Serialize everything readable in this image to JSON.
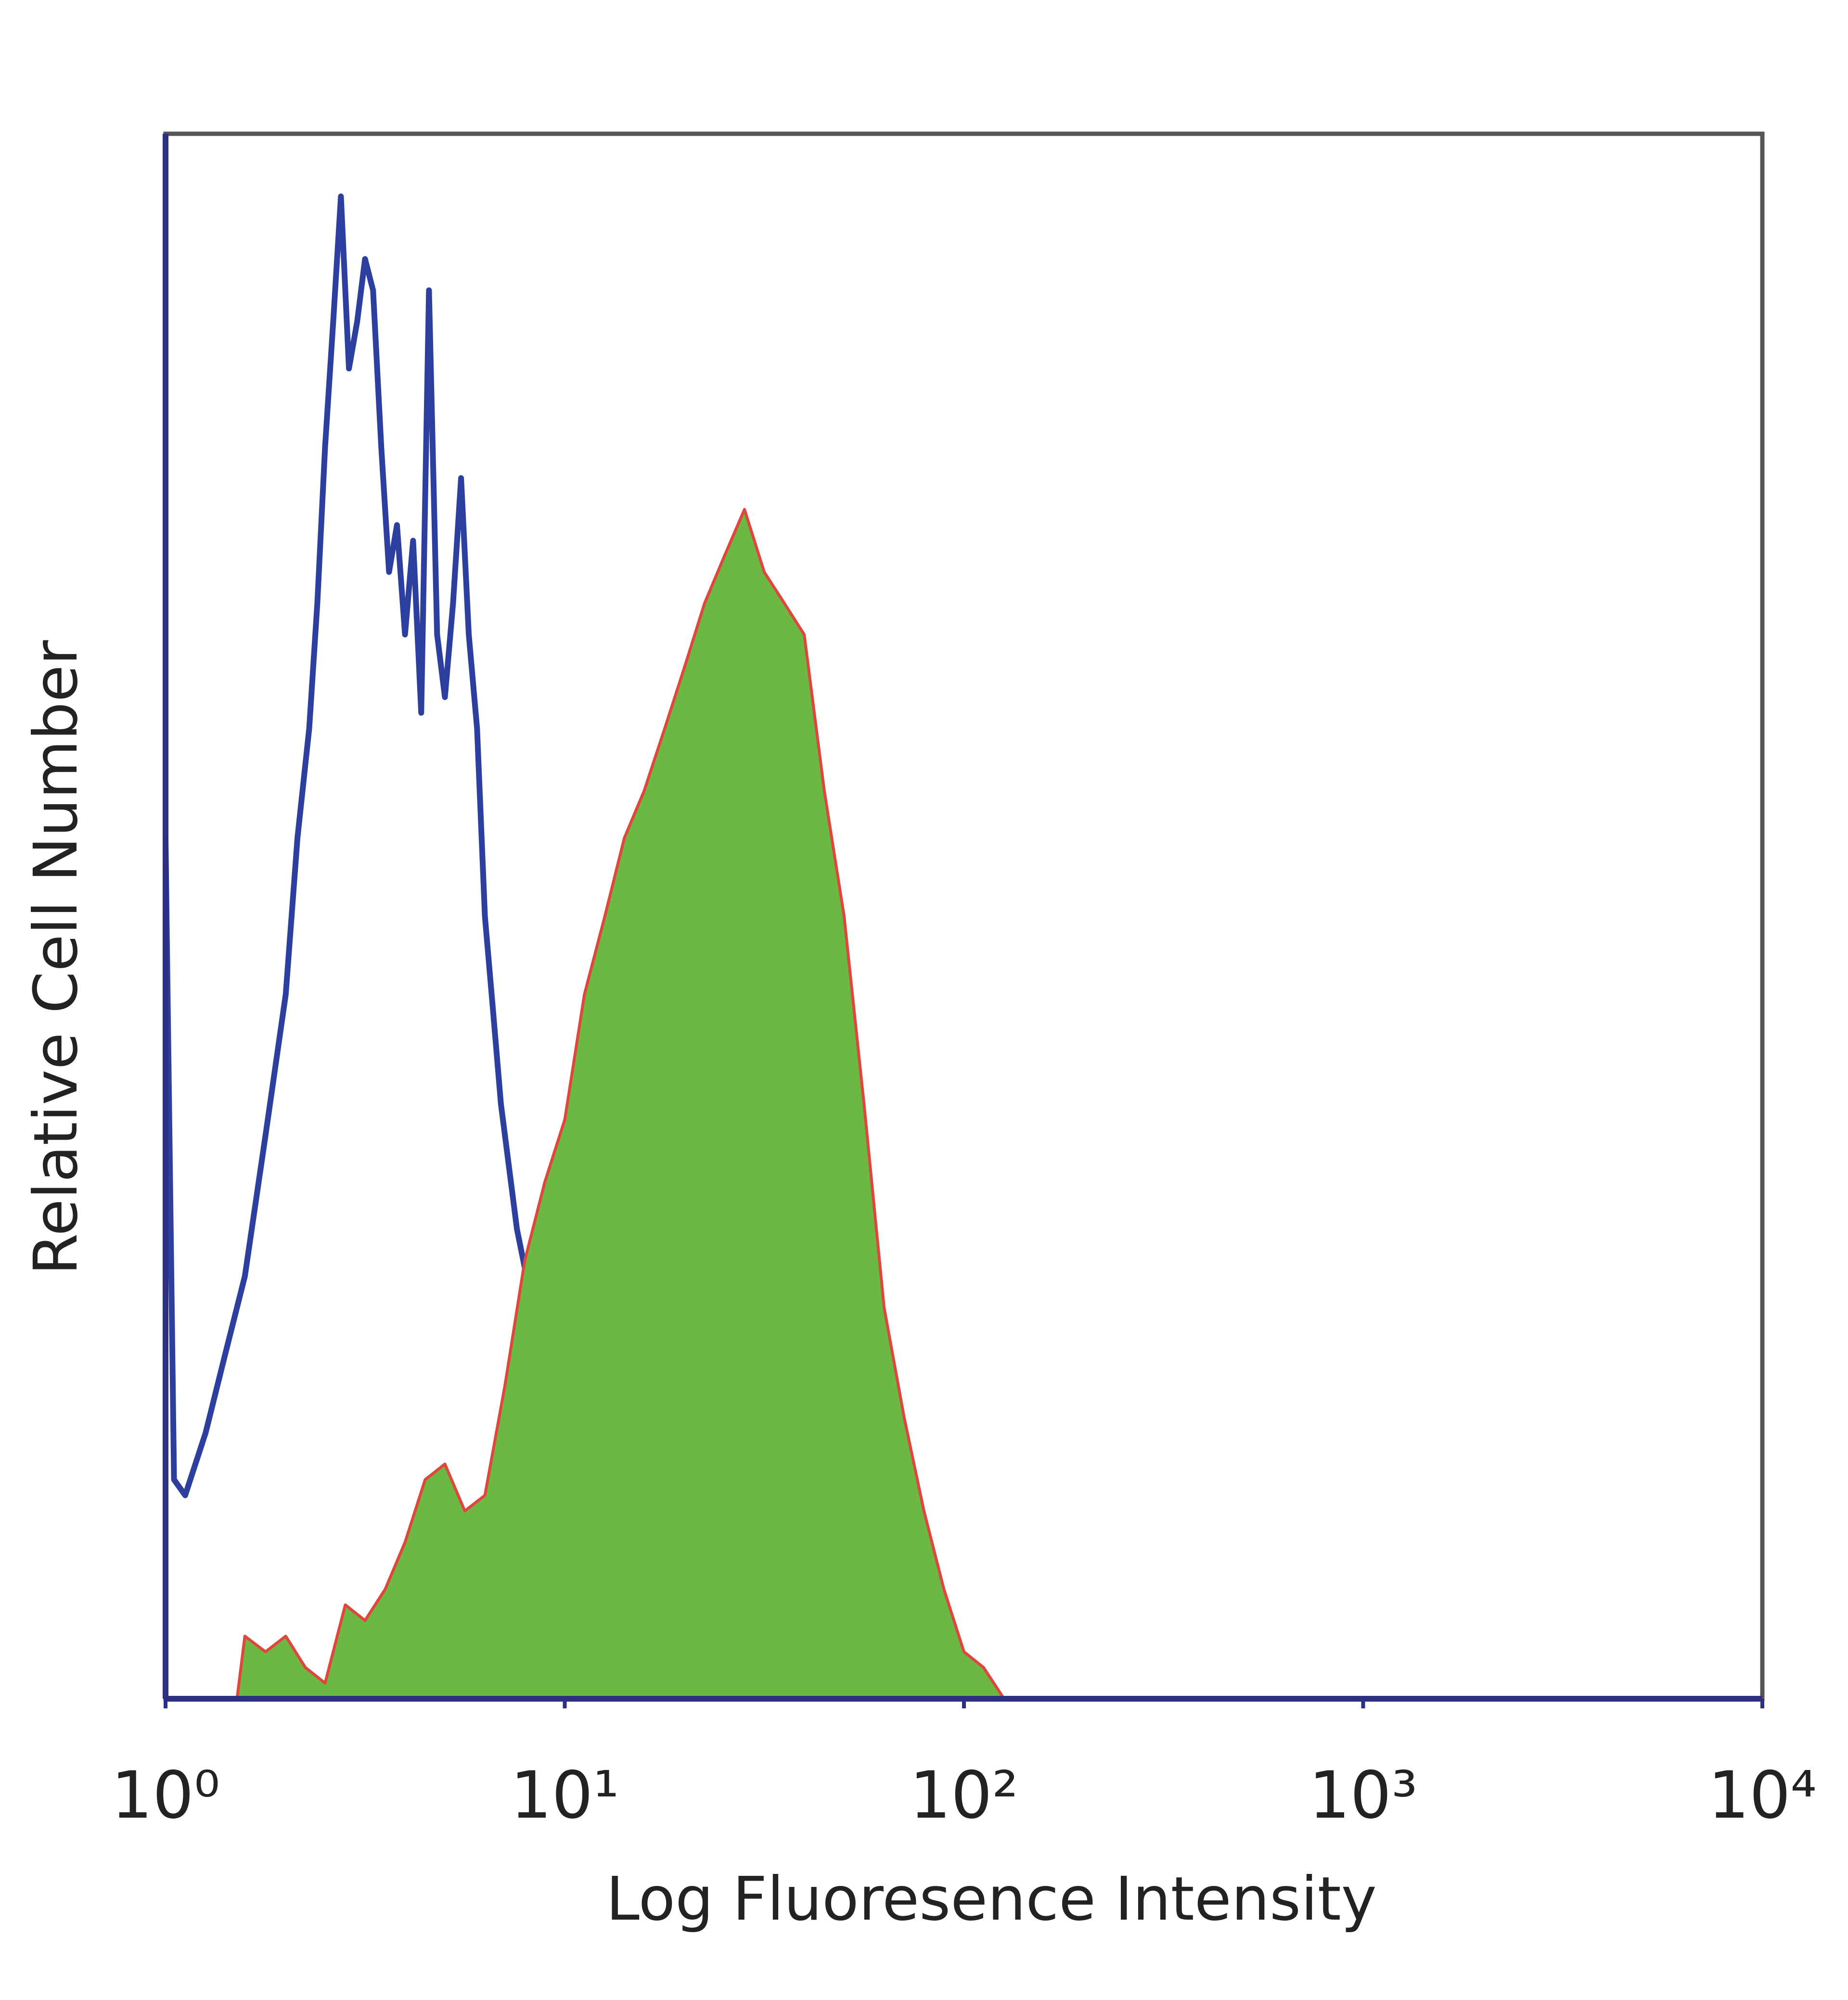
{
  "chart_data": {
    "type": "line",
    "xlabel": "Log Fluoresence Intensity",
    "ylabel": "Relative Cell Number",
    "xscale": "log",
    "xlim": [
      1,
      10000
    ],
    "ylim": [
      0,
      100
    ],
    "xticks": [
      {
        "value": 1,
        "label": "10⁰"
      },
      {
        "value": 10,
        "label": "10¹"
      },
      {
        "value": 100,
        "label": "10²"
      },
      {
        "value": 1000,
        "label": "10³"
      },
      {
        "value": 10000,
        "label": "10⁴"
      }
    ],
    "grid": false,
    "series": [
      {
        "color": "#2d3f9e",
        "fill": false,
        "x": [
          1,
          1.05,
          1.12,
          1.26,
          1.41,
          1.58,
          1.78,
          2.0,
          2.14,
          2.29,
          2.4,
          2.51,
          2.63,
          2.75,
          2.88,
          3.02,
          3.16,
          3.31,
          3.47,
          3.63,
          3.8,
          3.98,
          4.17,
          4.37,
          4.57,
          4.79,
          5.01,
          5.25,
          5.5,
          5.75,
          6.03,
          6.31,
          6.61,
          6.92,
          7.59,
          8.32,
          9.12,
          9.77,
          10.5,
          11.5,
          12.6,
          14.1,
          15.8,
          10000
        ],
        "values": [
          55,
          14,
          13,
          17,
          22,
          27,
          36,
          45,
          55,
          62,
          70,
          80,
          88,
          96,
          85,
          88,
          92,
          90,
          80,
          72,
          75,
          68,
          74,
          63,
          90,
          68,
          64,
          70,
          78,
          68,
          62,
          50,
          44,
          38,
          30,
          25,
          18,
          10,
          6,
          1,
          0,
          3,
          0,
          0
        ]
      },
      {
        "color": "#6bb843",
        "outline": "#e0463c",
        "fill": true,
        "x": [
          1,
          1.51,
          1.58,
          1.78,
          2.0,
          2.24,
          2.51,
          2.82,
          3.16,
          3.55,
          3.98,
          4.47,
          5.01,
          5.62,
          6.31,
          7.08,
          7.94,
          8.91,
          10,
          11.2,
          12.6,
          14.1,
          15.8,
          17.8,
          20,
          22.4,
          25.1,
          28.2,
          31.6,
          35.5,
          39.8,
          44.7,
          50.1,
          56.2,
          63.1,
          70.8,
          79.4,
          89.1,
          100,
          112,
          126,
          10000
        ],
        "values": [
          0,
          0,
          4,
          3,
          4,
          2,
          1,
          6,
          5,
          7,
          10,
          14,
          15,
          12,
          13,
          20,
          28,
          33,
          37,
          45,
          50,
          55,
          58,
          62,
          66,
          70,
          73,
          76,
          72,
          70,
          68,
          58,
          50,
          38,
          25,
          18,
          12,
          7,
          3,
          2,
          0,
          0
        ]
      }
    ]
  }
}
